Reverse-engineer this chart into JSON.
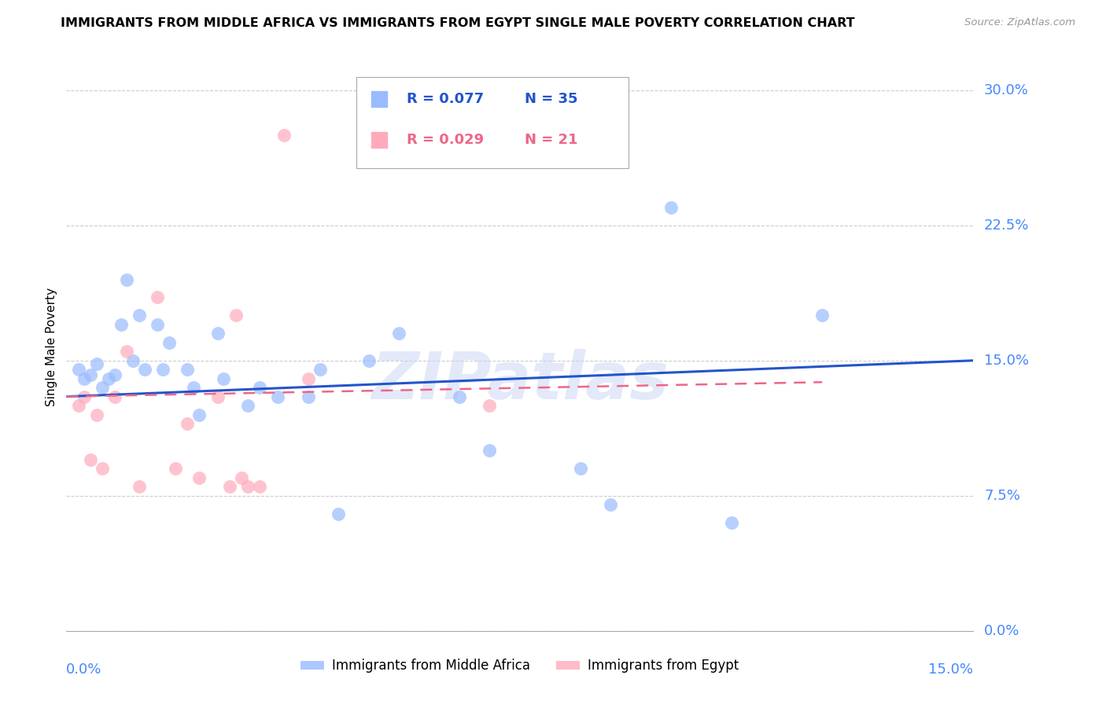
{
  "title": "IMMIGRANTS FROM MIDDLE AFRICA VS IMMIGRANTS FROM EGYPT SINGLE MALE POVERTY CORRELATION CHART",
  "source": "Source: ZipAtlas.com",
  "ylabel": "Single Male Poverty",
  "ylabel_ticks": [
    "0.0%",
    "7.5%",
    "15.0%",
    "22.5%",
    "30.0%"
  ],
  "ytick_values": [
    0.0,
    7.5,
    15.0,
    22.5,
    30.0
  ],
  "xrange": [
    0.0,
    15.0
  ],
  "yrange": [
    0.0,
    31.5
  ],
  "legend_r1": "R = 0.077",
  "legend_n1": "N = 35",
  "legend_r2": "R = 0.029",
  "legend_n2": "N = 21",
  "color_blue": "#99bbff",
  "color_pink": "#ffaabb",
  "color_line_blue": "#2255cc",
  "color_line_pink": "#ee6688",
  "watermark_text": "ZIPatlas",
  "label_blue": "Immigrants from Middle Africa",
  "label_pink": "Immigrants from Egypt",
  "blue_x": [
    0.2,
    0.3,
    0.4,
    0.5,
    0.6,
    0.7,
    0.8,
    0.9,
    1.0,
    1.1,
    1.2,
    1.3,
    1.5,
    1.6,
    1.7,
    2.0,
    2.1,
    2.2,
    2.5,
    2.6,
    3.0,
    3.2,
    3.5,
    4.0,
    4.2,
    4.5,
    5.5,
    6.5,
    7.0,
    8.5,
    9.0,
    10.0,
    11.0,
    12.5,
    5.0
  ],
  "blue_y": [
    14.5,
    14.0,
    14.2,
    14.8,
    13.5,
    14.0,
    14.2,
    17.0,
    19.5,
    15.0,
    17.5,
    14.5,
    17.0,
    14.5,
    16.0,
    14.5,
    13.5,
    12.0,
    16.5,
    14.0,
    12.5,
    13.5,
    13.0,
    13.0,
    14.5,
    6.5,
    16.5,
    13.0,
    10.0,
    9.0,
    7.0,
    23.5,
    6.0,
    17.5,
    15.0
  ],
  "pink_x": [
    0.2,
    0.3,
    0.4,
    0.5,
    0.6,
    0.8,
    1.0,
    1.2,
    1.5,
    1.8,
    2.0,
    2.2,
    2.5,
    2.7,
    2.8,
    2.9,
    3.0,
    3.2,
    3.6,
    4.0,
    7.0
  ],
  "pink_y": [
    12.5,
    13.0,
    9.5,
    12.0,
    9.0,
    13.0,
    15.5,
    8.0,
    18.5,
    9.0,
    11.5,
    8.5,
    13.0,
    8.0,
    17.5,
    8.5,
    8.0,
    8.0,
    27.5,
    14.0,
    12.5
  ],
  "blue_line_x": [
    0.0,
    15.0
  ],
  "blue_line_y": [
    13.0,
    15.0
  ],
  "pink_line_x": [
    0.0,
    12.5
  ],
  "pink_line_y": [
    13.0,
    13.8
  ]
}
